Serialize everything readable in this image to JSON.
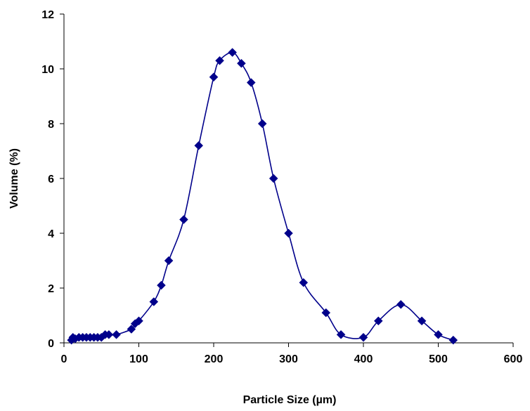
{
  "chart_data": {
    "type": "scatter",
    "title": "",
    "xlabel": "Particle Size (µm)",
    "ylabel": "Volume (%)",
    "xlim": [
      0,
      600
    ],
    "ylim": [
      0,
      12
    ],
    "x_ticks": [
      "0",
      "100",
      "200",
      "300",
      "400",
      "500",
      "600"
    ],
    "y_ticks": [
      "0",
      "2",
      "4",
      "6",
      "8",
      "10",
      "12"
    ],
    "grid": false,
    "legend": "none",
    "line_style": "smoothed line with diamond markers",
    "colors": {
      "series": "#00008B",
      "axis": "#000000"
    },
    "series": [
      {
        "x": [
          10,
          12,
          15,
          20,
          25,
          30,
          35,
          40,
          45,
          50,
          55,
          60,
          70,
          90,
          95,
          100,
          120,
          130,
          140,
          160,
          180,
          200,
          208,
          225,
          237,
          250,
          265,
          280,
          300,
          320,
          350,
          370,
          400,
          420,
          450,
          478,
          500,
          520
        ],
        "y": [
          0.1,
          0.2,
          0.15,
          0.2,
          0.2,
          0.2,
          0.2,
          0.2,
          0.2,
          0.2,
          0.3,
          0.3,
          0.3,
          0.5,
          0.7,
          0.8,
          1.5,
          2.1,
          3.0,
          4.5,
          7.2,
          9.7,
          10.3,
          10.6,
          10.2,
          9.5,
          8.0,
          6.0,
          4.0,
          2.2,
          1.1,
          0.3,
          0.2,
          0.8,
          1.4,
          0.8,
          0.3,
          0.1
        ]
      }
    ]
  }
}
